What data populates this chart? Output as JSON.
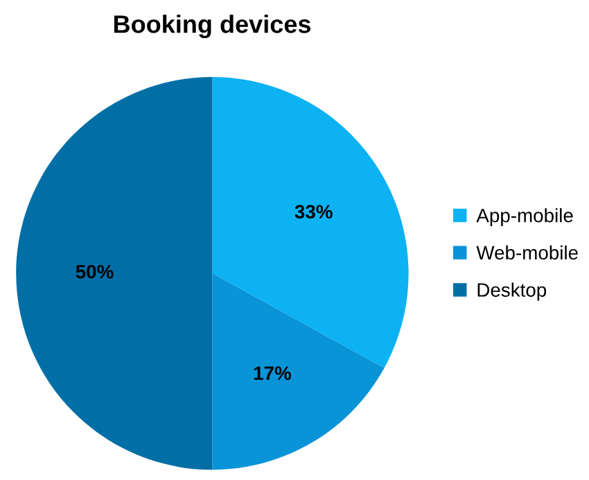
{
  "chart_data": {
    "type": "pie",
    "title": "Booking devices",
    "categories": [
      "App-mobile",
      "Web-mobile",
      "Desktop"
    ],
    "values": [
      33,
      17,
      50
    ],
    "colors": [
      "#0cb2f2",
      "#0a94d8",
      "#016fa6"
    ],
    "value_labels": [
      "33%",
      "17%",
      "50%"
    ],
    "legend": "right"
  }
}
